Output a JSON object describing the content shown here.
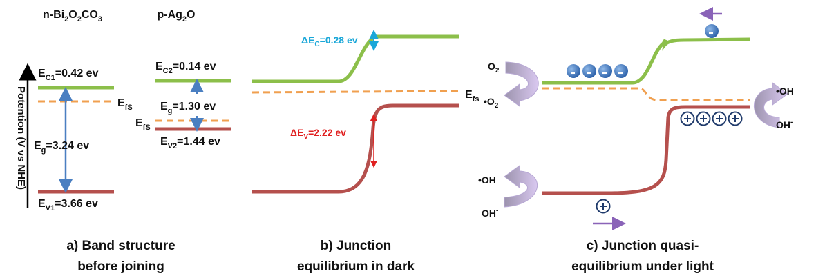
{
  "panel_a": {
    "materials": [
      [
        "n-Bi",
        "2",
        "O",
        "2",
        "CO",
        "3"
      ],
      [
        "p-Ag",
        "2",
        "O"
      ]
    ],
    "axis_label": "Potention (V vs NHE)",
    "ec1": [
      "E",
      "C1",
      "=0.42 ev"
    ],
    "efs1": [
      "E",
      "fS"
    ],
    "eg1": [
      "E",
      "g",
      "=3.24 ev"
    ],
    "ev1": [
      "E",
      "V1",
      "=3.66 ev"
    ],
    "ec2": [
      "E",
      "C2",
      "=0.14 ev"
    ],
    "eg2": [
      "E",
      "g",
      "=1.30 ev"
    ],
    "efs2": [
      "E",
      "fS"
    ],
    "ev2": [
      "E",
      "V2",
      "=1.44 ev"
    ],
    "caption": [
      "a) Band structure",
      "before joining"
    ]
  },
  "panel_b": {
    "delta_ec": [
      "ΔE",
      "C",
      "=0.28 ev"
    ],
    "delta_ev": [
      "ΔE",
      "V",
      "=2.22 ev"
    ],
    "efs": [
      "E",
      "fs"
    ],
    "caption": [
      "b) Junction",
      "equilibrium in dark"
    ]
  },
  "panel_c": {
    "o2": [
      "O",
      "2"
    ],
    "o2_radical": [
      "•O",
      "2"
    ],
    "oh_radical_right": "•OH",
    "oh_minus_right": [
      "OH",
      "-"
    ],
    "oh_radical_left": "•OH",
    "oh_minus_left": [
      "OH",
      "-"
    ],
    "caption": [
      "c) Junction quasi-",
      "equilibrium under light"
    ]
  }
}
